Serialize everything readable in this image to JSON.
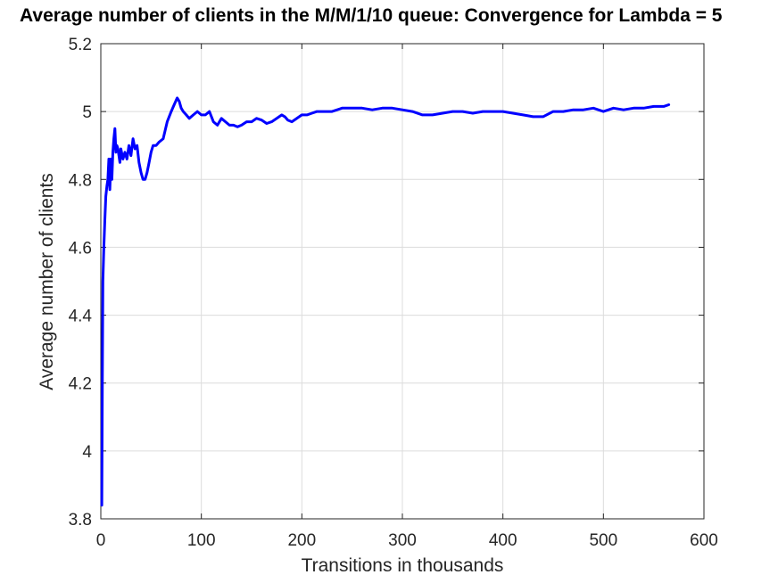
{
  "chart_data": {
    "type": "line",
    "title": "Average number of clients in the M/M/1/10 queue: Convergence for Lambda = 5",
    "xlabel": "Transitions in thousands",
    "ylabel": "Average number of clients",
    "xlim": [
      0,
      600
    ],
    "ylim": [
      3.8,
      5.2
    ],
    "xticks": [
      0,
      100,
      200,
      300,
      400,
      500,
      600
    ],
    "xtick_labels": [
      "0",
      "100",
      "200",
      "300",
      "400",
      "500",
      "600"
    ],
    "yticks": [
      3.8,
      4,
      4.2,
      4.4,
      4.6,
      4.8,
      5,
      5.2
    ],
    "ytick_labels": [
      "3.8",
      "4",
      "4.2",
      "4.4",
      "4.6",
      "4.8",
      "5",
      "5.2"
    ],
    "grid": true,
    "colors": {
      "line": "#0000ff",
      "grid": "#dcdcdc",
      "axis": "#262626"
    },
    "series": [
      {
        "x": [
          1,
          1.5,
          2,
          3,
          4,
          5,
          6,
          7,
          8,
          9,
          10,
          11,
          12,
          13,
          14,
          15,
          16,
          17,
          18,
          19,
          20,
          22,
          24,
          26,
          28,
          30,
          32,
          34,
          36,
          38,
          40,
          42,
          44,
          46,
          48,
          50,
          52,
          55,
          58,
          62,
          66,
          70,
          73,
          76,
          78,
          80,
          82,
          85,
          88,
          92,
          96,
          100,
          104,
          108,
          112,
          116,
          120,
          124,
          128,
          132,
          136,
          140,
          145,
          150,
          155,
          160,
          165,
          170,
          175,
          180,
          183,
          186,
          190,
          195,
          200,
          205,
          210,
          215,
          220,
          230,
          240,
          250,
          260,
          270,
          280,
          290,
          300,
          310,
          320,
          330,
          340,
          350,
          360,
          370,
          380,
          390,
          400,
          410,
          420,
          430,
          440,
          450,
          460,
          470,
          480,
          490,
          500,
          510,
          520,
          530,
          540,
          550,
          560,
          565
        ],
        "y": [
          3.84,
          4.2,
          4.5,
          4.6,
          4.68,
          4.75,
          4.78,
          4.8,
          4.86,
          4.77,
          4.86,
          4.8,
          4.88,
          4.92,
          4.95,
          4.88,
          4.9,
          4.89,
          4.87,
          4.85,
          4.89,
          4.86,
          4.88,
          4.86,
          4.9,
          4.87,
          4.92,
          4.89,
          4.9,
          4.85,
          4.82,
          4.8,
          4.8,
          4.82,
          4.85,
          4.88,
          4.9,
          4.9,
          4.91,
          4.92,
          4.97,
          5.0,
          5.02,
          5.04,
          5.03,
          5.01,
          5.0,
          4.99,
          4.98,
          4.99,
          5.0,
          4.99,
          4.99,
          5.0,
          4.97,
          4.96,
          4.98,
          4.97,
          4.96,
          4.96,
          4.955,
          4.96,
          4.97,
          4.97,
          4.98,
          4.975,
          4.965,
          4.97,
          4.98,
          4.99,
          4.985,
          4.975,
          4.97,
          4.98,
          4.99,
          4.99,
          4.995,
          5.0,
          5.0,
          5.0,
          5.01,
          5.01,
          5.01,
          5.005,
          5.01,
          5.01,
          5.005,
          5.0,
          4.99,
          4.99,
          4.995,
          5.0,
          5.0,
          4.995,
          5.0,
          5.0,
          5.0,
          4.995,
          4.99,
          4.985,
          4.985,
          5.0,
          5.0,
          5.005,
          5.005,
          5.01,
          5.0,
          5.01,
          5.005,
          5.01,
          5.01,
          5.015,
          5.015,
          5.02
        ]
      }
    ]
  }
}
